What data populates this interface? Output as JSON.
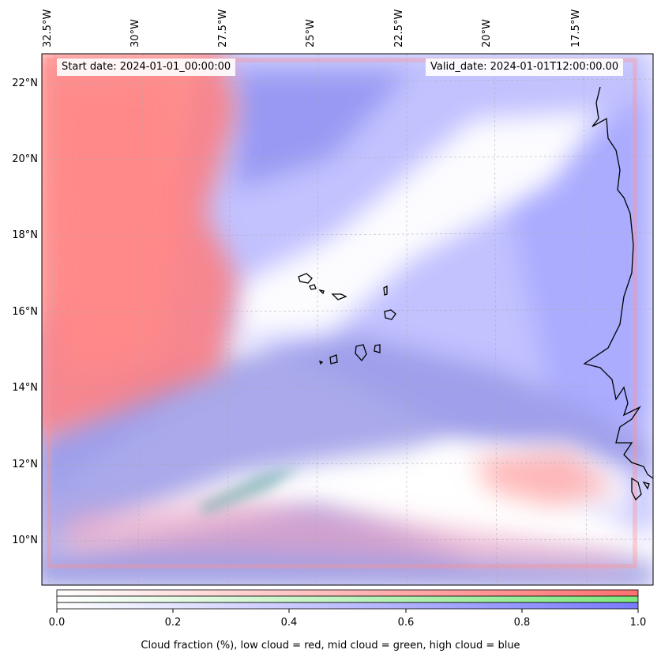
{
  "map": {
    "start_date": "Start date: 2024-01-01_00:00:00",
    "valid_date": "Valid_date: 2024-01-01T12:00:00.00",
    "lon_labels": [
      "32.5°W",
      "30°W",
      "27.5°W",
      "25°W",
      "22.5°W",
      "20°W",
      "17.5°W"
    ],
    "lat_labels": [
      "22°N",
      "20°N",
      "18°N",
      "16°N",
      "14°N",
      "12°N",
      "10°N"
    ],
    "colors": {
      "low_cloud": "#ff7070",
      "mid_cloud": "#7de87d",
      "high_cloud": "#7a7aff",
      "coastline": "#000000",
      "gridline": "#aaaaaa"
    }
  },
  "colorbar": {
    "ticks": [
      "0.0",
      "0.2",
      "0.4",
      "0.6",
      "0.8",
      "1.0"
    ],
    "caption": "Cloud fraction (%), low cloud = red, mid cloud = green, high cloud = blue"
  }
}
